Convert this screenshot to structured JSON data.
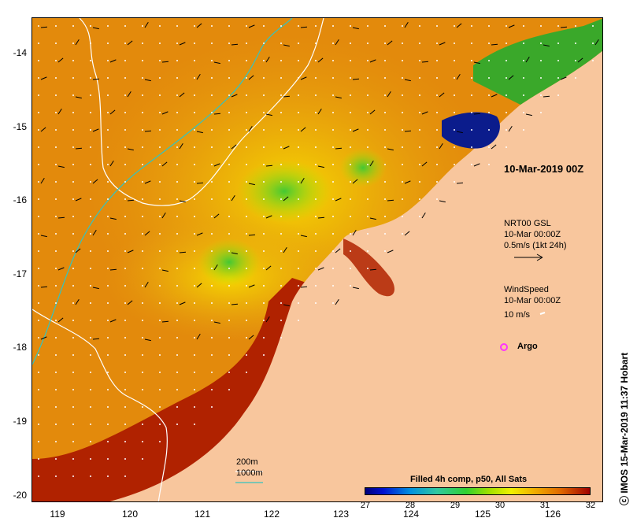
{
  "map": {
    "lat_ticks": [
      "-14",
      "-15",
      "-16",
      "-17",
      "-18",
      "-19",
      "-20"
    ],
    "lon_ticks": [
      "119",
      "120",
      "121",
      "122",
      "123",
      "124",
      "125",
      "126"
    ],
    "colors": {
      "ocean_warm": "#e38a0c",
      "ocean_hot": "#a81c00",
      "ocean_mid": "#f2c300",
      "ocean_cool": "#b6e000",
      "ocean_green": "#55cc33",
      "ocean_blue": "#0b1c8c",
      "land": "#f8c69d",
      "isobath_200": "#ffffff",
      "isobath_1000": "#33c4c0"
    }
  },
  "annotations": {
    "date_title": "10-Mar-2019 00Z",
    "gsl_title": "NRT00 GSL",
    "gsl_time": "10-Mar 00:00Z",
    "gsl_scale": "0.5m/s (1kt 24h)",
    "wind_title": "WindSpeed",
    "wind_time": "10-Mar 00:00Z",
    "wind_scale": "10 m/s",
    "argo_label": "Argo",
    "argo_color": "#ff33ff",
    "isobath_200_label": "200m",
    "isobath_1000_label": "1000m"
  },
  "colorbar": {
    "title": "Filled 4h comp, p50, All Sats",
    "ticks": [
      "27",
      "28",
      "29",
      "30",
      "31",
      "32"
    ]
  },
  "credit": "ⓒ IMOS 15-Mar-2019 11:37 Hobart"
}
